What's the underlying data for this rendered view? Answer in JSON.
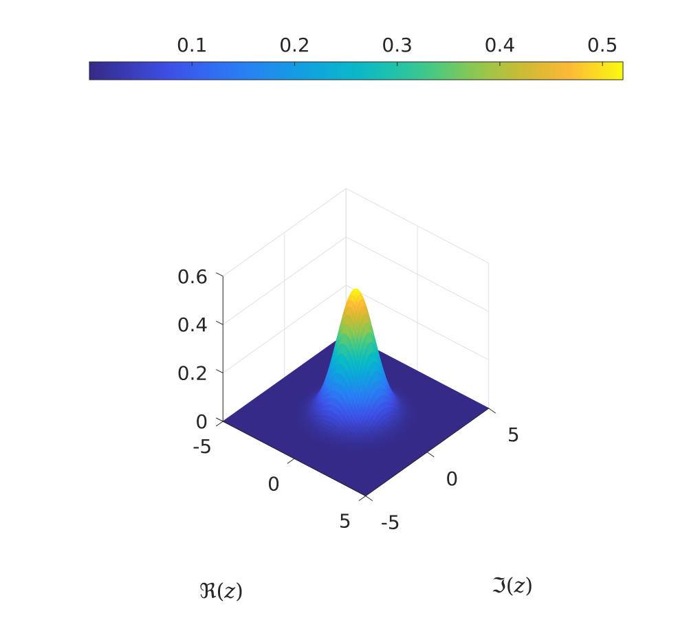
{
  "chart_data": {
    "type": "surface",
    "function": "Gaussian bump centered at z = 0",
    "peak_value": 0.52,
    "sigma": 1.0,
    "colormap": "parula",
    "x": {
      "label_prefix": "ℜ",
      "label_var": "z",
      "range": [
        -5,
        5
      ],
      "ticks": [
        "-5",
        "0",
        "5"
      ]
    },
    "y": {
      "label_prefix": "ℑ",
      "label_var": "z",
      "range": [
        -5,
        5
      ],
      "ticks": [
        "-5",
        "0",
        "5"
      ]
    },
    "z": {
      "range": [
        0,
        0.6
      ],
      "ticks": [
        "0",
        "0.2",
        "0.4",
        "0.6"
      ]
    },
    "colorbar": {
      "location": "top",
      "range": [
        0,
        0.52
      ],
      "ticks": [
        "0.1",
        "0.2",
        "0.3",
        "0.4",
        "0.5"
      ]
    },
    "grid": true
  }
}
